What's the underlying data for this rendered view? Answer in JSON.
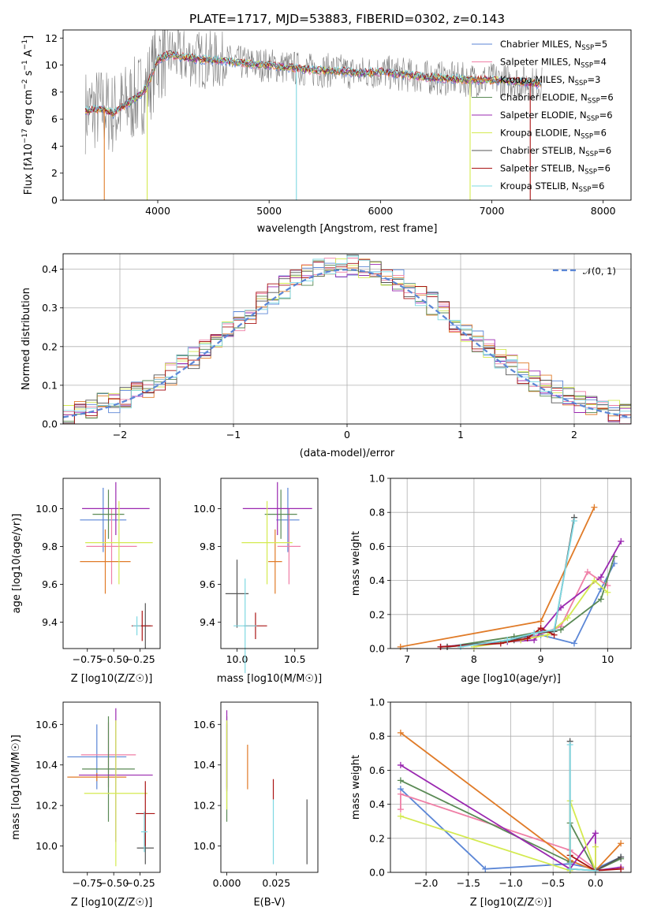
{
  "figure": {
    "title": "PLATE=1717, MJD=53883, FIBERID=0302, z=0.143"
  },
  "models": [
    {
      "name": "Chabrier MILES",
      "nssp": "5",
      "color": "#5b86d6"
    },
    {
      "name": "Salpeter MILES",
      "nssp": "4",
      "color": "#ef7fa6"
    },
    {
      "name": "Kroupa MILES",
      "nssp": "3",
      "color": "#e07b28"
    },
    {
      "name": "Chabrier ELODIE",
      "nssp": "6",
      "color": "#5a8a55"
    },
    {
      "name": "Salpeter ELODIE",
      "nssp": "6",
      "color": "#9a28b0"
    },
    {
      "name": "Kroupa ELODIE",
      "nssp": "6",
      "color": "#d4ea50"
    },
    {
      "name": "Chabrier STELIB",
      "nssp": "6",
      "color": "#555555"
    },
    {
      "name": "Salpeter STELIB",
      "nssp": "6",
      "color": "#aa1414"
    },
    {
      "name": "Kroupa STELIB",
      "nssp": "6",
      "color": "#7ed8e2"
    }
  ],
  "chart_data": [
    {
      "id": "spectrum",
      "type": "line",
      "xlabel": "wavelength [Angstrom, rest frame]",
      "ylabel": "Flux [f_λ10^-17 erg cm^-2 s^-1 A^-1]",
      "xlim": [
        3150,
        8250
      ],
      "ylim": [
        0,
        12.6
      ],
      "xticks": [
        4000,
        5000,
        6000,
        7000,
        8000
      ],
      "yticks": [
        0,
        2,
        4,
        6,
        8,
        10,
        12
      ],
      "continuum": {
        "x": [
          3350,
          3500,
          3600,
          3700,
          3800,
          3900,
          4000,
          4100,
          4200,
          4400,
          4600,
          4800,
          5000,
          5200,
          5400,
          5600,
          5800,
          6000,
          6200,
          6400,
          6600,
          6800,
          7000,
          7200,
          7400
        ],
        "y": [
          6.6,
          6.8,
          6.4,
          7.0,
          7.5,
          8.3,
          10.4,
          10.8,
          10.6,
          10.4,
          10.3,
          10.1,
          10.0,
          9.8,
          9.6,
          9.6,
          9.4,
          9.5,
          9.3,
          9.1,
          9.0,
          8.9,
          8.9,
          8.8,
          8.6
        ]
      },
      "grid": false,
      "legend_position": "upper-right"
    },
    {
      "id": "residuals",
      "type": "histogram",
      "xlabel": "(data-model)/error",
      "ylabel": "Normed distribution",
      "xlim": [
        -2.5,
        2.5
      ],
      "ylim": [
        0,
        0.44
      ],
      "xticks": [
        -2,
        -1,
        0,
        1,
        2
      ],
      "yticks": [
        0.0,
        0.1,
        0.2,
        0.3,
        0.4
      ],
      "bin_width": 0.1,
      "reference": {
        "label": "𝒩(0, 1)",
        "mean": 0,
        "sigma": 1,
        "style": "dashed",
        "color": "#5b86d6"
      },
      "grid": true,
      "legend_position": "upper-right"
    },
    {
      "id": "age-vs-Z",
      "type": "errorbar",
      "xlabel": "Z [log10(Z/Z☉)]",
      "ylabel": "age [log10(age/yr)]",
      "xlim": [
        -0.98,
        -0.06
      ],
      "ylim": [
        9.26,
        10.16
      ],
      "xticks": [
        -0.75,
        -0.5,
        -0.25
      ],
      "yticks": [
        9.4,
        9.6,
        9.8,
        10.0
      ],
      "points": [
        {
          "x": -0.6,
          "xerr": 0.22,
          "y": 9.94,
          "yerr": 0.17,
          "model": 0
        },
        {
          "x": -0.52,
          "xerr": 0.24,
          "y": 9.8,
          "yerr": 0.2,
          "model": 1
        },
        {
          "x": -0.58,
          "xerr": 0.24,
          "y": 9.72,
          "yerr": 0.17,
          "model": 2
        },
        {
          "x": -0.55,
          "xerr": 0.15,
          "y": 9.97,
          "yerr": 0.13,
          "model": 3
        },
        {
          "x": -0.48,
          "xerr": 0.32,
          "y": 10.0,
          "yerr": 0.14,
          "model": 4
        },
        {
          "x": -0.45,
          "xerr": 0.32,
          "y": 9.82,
          "yerr": 0.22,
          "model": 5
        },
        {
          "x": -0.2,
          "xerr": 0.05,
          "y": 9.38,
          "yerr": 0.12,
          "model": 6
        },
        {
          "x": -0.23,
          "xerr": 0.1,
          "y": 9.38,
          "yerr": 0.08,
          "model": 7
        },
        {
          "x": -0.28,
          "xerr": 0.04,
          "y": 9.38,
          "yerr": 0.05,
          "model": 8
        }
      ]
    },
    {
      "id": "age-vs-mass",
      "type": "errorbar",
      "xlabel": "mass [log10(M/M☉)]",
      "ylabel": "",
      "xlim": [
        9.86,
        10.7
      ],
      "ylim": [
        9.26,
        10.16
      ],
      "xticks": [
        10.0,
        10.5
      ],
      "yticks": [
        9.4,
        9.6,
        9.8,
        10.0
      ],
      "points": [
        {
          "x": 10.44,
          "xerr": 0.1,
          "y": 9.94,
          "yerr": 0.17,
          "model": 0
        },
        {
          "x": 10.45,
          "xerr": 0.1,
          "y": 9.8,
          "yerr": 0.2,
          "model": 1
        },
        {
          "x": 10.33,
          "xerr": 0.06,
          "y": 9.72,
          "yerr": 0.17,
          "model": 2
        },
        {
          "x": 10.38,
          "xerr": 0.14,
          "y": 9.97,
          "yerr": 0.13,
          "model": 3
        },
        {
          "x": 10.35,
          "xerr": 0.3,
          "y": 10.0,
          "yerr": 0.14,
          "model": 4
        },
        {
          "x": 10.26,
          "xerr": 0.22,
          "y": 9.82,
          "yerr": 0.22,
          "model": 5
        },
        {
          "x": 10.0,
          "xerr": 0.1,
          "y": 9.55,
          "yerr": 0.18,
          "model": 6
        },
        {
          "x": 10.16,
          "xerr": 0.1,
          "y": 9.38,
          "yerr": 0.07,
          "model": 7
        },
        {
          "x": 10.07,
          "xerr": 0.1,
          "y": 9.38,
          "yerr": 0.25,
          "model": 8
        }
      ]
    },
    {
      "id": "weight-vs-age",
      "type": "line",
      "xlabel": "age [log10(age/yr)]",
      "ylabel": "mass weight",
      "xlim": [
        6.75,
        10.35
      ],
      "ylim": [
        0,
        1.0
      ],
      "xticks": [
        7,
        8,
        9,
        10
      ],
      "yticks": [
        0.0,
        0.2,
        0.4,
        0.6,
        0.8,
        1.0
      ],
      "grid": true,
      "series": [
        {
          "model": 0,
          "x": [
            8.6,
            9.0,
            9.5,
            9.9,
            10.1
          ],
          "y": [
            0.06,
            0.08,
            0.03,
            0.35,
            0.5
          ]
        },
        {
          "model": 1,
          "x": [
            8.7,
            8.9,
            9.3,
            9.7,
            10.0
          ],
          "y": [
            0.05,
            0.07,
            0.13,
            0.45,
            0.37
          ]
        },
        {
          "model": 2,
          "x": [
            6.9,
            9.0,
            9.8
          ],
          "y": [
            0.01,
            0.16,
            0.83
          ]
        },
        {
          "model": 3,
          "x": [
            7.6,
            8.6,
            9.0,
            9.3,
            9.9,
            10.1
          ],
          "y": [
            0.01,
            0.07,
            0.1,
            0.11,
            0.29,
            0.54
          ]
        },
        {
          "model": 4,
          "x": [
            7.5,
            8.5,
            8.9,
            9.3,
            9.9,
            10.2
          ],
          "y": [
            0.01,
            0.04,
            0.05,
            0.24,
            0.42,
            0.63
          ]
        },
        {
          "model": 5,
          "x": [
            8.0,
            8.7,
            9.1,
            9.4,
            9.8,
            10.0
          ],
          "y": [
            0.01,
            0.05,
            0.08,
            0.18,
            0.4,
            0.33
          ]
        },
        {
          "model": 6,
          "x": [
            7.6,
            8.6,
            8.9,
            9.2,
            9.5
          ],
          "y": [
            0.01,
            0.05,
            0.09,
            0.1,
            0.77
          ]
        },
        {
          "model": 7,
          "x": [
            7.5,
            8.4,
            8.8,
            9.0,
            9.2
          ],
          "y": [
            0.01,
            0.03,
            0.06,
            0.12,
            0.08
          ]
        },
        {
          "model": 8,
          "x": [
            7.8,
            8.5,
            8.9,
            9.2,
            9.5
          ],
          "y": [
            0.01,
            0.05,
            0.09,
            0.11,
            0.75
          ]
        }
      ]
    },
    {
      "id": "mass-vs-Z",
      "type": "errorbar",
      "xlabel": "Z [log10(Z/Z☉)]",
      "ylabel": "mass [log10(M/M☉)]",
      "xlim": [
        -0.98,
        -0.06
      ],
      "ylim": [
        9.87,
        10.71
      ],
      "xticks": [
        -0.75,
        -0.5,
        -0.25
      ],
      "yticks": [
        10.0,
        10.2,
        10.4,
        10.6
      ],
      "points": [
        {
          "x": -0.66,
          "xerr": 0.28,
          "y": 10.44,
          "yerr": 0.16,
          "model": 0
        },
        {
          "x": -0.55,
          "xerr": 0.26,
          "y": 10.45,
          "yerr": 0.16,
          "model": 1
        },
        {
          "x": -0.66,
          "xerr": 0.28,
          "y": 10.34,
          "yerr": 0.02,
          "model": 2
        },
        {
          "x": -0.55,
          "xerr": 0.25,
          "y": 10.38,
          "yerr": 0.26,
          "model": 3
        },
        {
          "x": -0.48,
          "xerr": 0.35,
          "y": 10.35,
          "yerr": 0.33,
          "model": 4
        },
        {
          "x": -0.48,
          "xerr": 0.3,
          "y": 10.26,
          "yerr": 0.36,
          "model": 5
        },
        {
          "x": -0.2,
          "xerr": 0.08,
          "y": 9.99,
          "yerr": 0.08,
          "model": 6
        },
        {
          "x": -0.2,
          "xerr": 0.09,
          "y": 10.16,
          "yerr": 0.16,
          "model": 7
        },
        {
          "x": -0.21,
          "xerr": 0.03,
          "y": 10.07,
          "yerr": 0.1,
          "model": 8
        }
      ]
    },
    {
      "id": "mass-vs-ebv",
      "type": "errorbar",
      "xlabel": "E(B-V)",
      "ylabel": "",
      "xlim": [
        -0.003,
        0.046
      ],
      "ylim": [
        9.87,
        10.71
      ],
      "xticks": [
        0.0,
        0.025
      ],
      "yticks": [
        10.0,
        10.2,
        10.4,
        10.6
      ],
      "points": [
        {
          "x": 0.0,
          "y": 10.44,
          "yerr": 0.16,
          "model": 0
        },
        {
          "x": 0.0,
          "y": 10.45,
          "yerr": 0.16,
          "model": 1
        },
        {
          "x": 0.0105,
          "y": 10.39,
          "yerr": 0.11,
          "model": 2
        },
        {
          "x": 0.0,
          "y": 10.38,
          "yerr": 0.26,
          "model": 3
        },
        {
          "x": 0.0,
          "y": 10.47,
          "yerr": 0.2,
          "model": 4
        },
        {
          "x": 0.0,
          "y": 10.4,
          "yerr": 0.22,
          "model": 5
        },
        {
          "x": 0.0405,
          "y": 10.07,
          "yerr": 0.16,
          "model": 6
        },
        {
          "x": 0.0235,
          "y": 10.28,
          "yerr": 0.05,
          "model": 7
        },
        {
          "x": 0.0235,
          "y": 10.07,
          "yerr": 0.16,
          "model": 8
        }
      ]
    },
    {
      "id": "weight-vs-Z",
      "type": "line",
      "xlabel": "Z [log10(Z/Z☉)]",
      "ylabel": "mass weight",
      "xlim": [
        -2.42,
        0.42
      ],
      "ylim": [
        0,
        1.0
      ],
      "xticks": [
        -2.0,
        -1.5,
        -1.0,
        -0.5,
        0.0
      ],
      "yticks": [
        0.0,
        0.2,
        0.4,
        0.6,
        0.8,
        1.0
      ],
      "grid": true,
      "series": [
        {
          "model": 0,
          "x": [
            -2.3,
            -1.3,
            -0.3,
            0.0,
            0.3
          ],
          "y": [
            0.49,
            0.02,
            0.05,
            0.02,
            0.09
          ]
        },
        {
          "model": 1,
          "x": [
            -2.3,
            -2.3,
            -0.3,
            0.0
          ],
          "y": [
            0.37,
            0.46,
            0.13,
            0.02
          ]
        },
        {
          "model": 2,
          "x": [
            -2.3,
            -0.3,
            0.0,
            0.3
          ],
          "y": [
            0.82,
            0.07,
            0.01,
            0.17
          ]
        },
        {
          "model": 3,
          "x": [
            -2.3,
            -0.3,
            -0.3,
            0.0,
            0.3
          ],
          "y": [
            0.54,
            0.06,
            0.29,
            0.01,
            0.08
          ]
        },
        {
          "model": 4,
          "x": [
            -2.3,
            -0.3,
            0.0,
            0.0,
            0.3
          ],
          "y": [
            0.63,
            0.02,
            0.23,
            0.01,
            0.03
          ]
        },
        {
          "model": 5,
          "x": [
            -2.3,
            -0.3,
            -0.3,
            0.0,
            0.0
          ],
          "y": [
            0.33,
            0.01,
            0.42,
            0.01,
            0.15
          ]
        },
        {
          "model": 6,
          "x": [
            -0.3,
            -0.3,
            0.0,
            0.3
          ],
          "y": [
            0.77,
            0.02,
            0.01,
            0.09
          ]
        },
        {
          "model": 7,
          "x": [
            -0.3,
            0.0,
            0.3
          ],
          "y": [
            0.1,
            0.01,
            0.02
          ]
        },
        {
          "model": 8,
          "x": [
            -0.3,
            -0.3,
            0.0
          ],
          "y": [
            0.75,
            0.02,
            0.01
          ]
        }
      ]
    }
  ]
}
